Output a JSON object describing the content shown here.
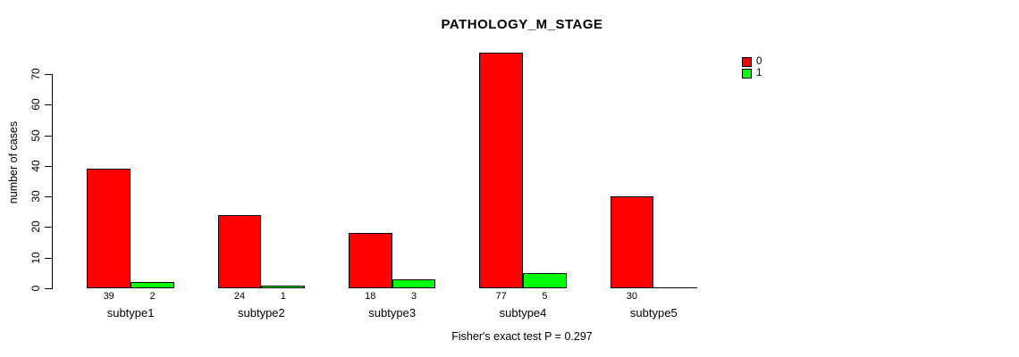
{
  "chart_data": {
    "type": "bar",
    "title": "PATHOLOGY_M_STAGE",
    "ylabel": "number of cases",
    "xlabel": "",
    "categories": [
      "subtype1",
      "subtype2",
      "subtype3",
      "subtype4",
      "subtype5"
    ],
    "series": [
      {
        "name": "0",
        "color": "#FF0000",
        "values": [
          39,
          24,
          18,
          77,
          30
        ]
      },
      {
        "name": "1",
        "color": "#00FF00",
        "values": [
          2,
          1,
          3,
          5,
          0
        ]
      }
    ],
    "yticks": [
      0,
      10,
      20,
      30,
      40,
      50,
      60,
      70
    ],
    "ylim": [
      0,
      78
    ],
    "grid": false,
    "legend_position": "top-right",
    "bar_value_labels_shown": true,
    "zero_value_labels_hidden": true,
    "annotation": "Fisher's exact test P = 0.297"
  },
  "colors": {
    "background": "#FFFFFF",
    "axis": "#000000",
    "bar_border": "#000000",
    "series_0": "#FF0000",
    "series_1": "#00FF00"
  }
}
